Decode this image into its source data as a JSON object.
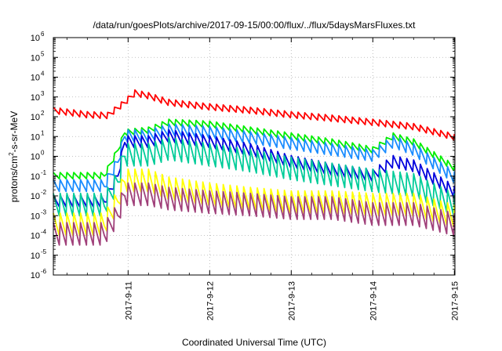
{
  "chart_data": {
    "type": "line",
    "title": "/data/run/goesPlots/archive/2017-09-15/00:00/flux/../flux/5daysMarsFluxes.txt",
    "xlabel": "Coordinated Universal Time (UTC)",
    "ylabel": "protons/cm²-s-sr-MeV",
    "ylabel_parts": {
      "pre": "protons/cm",
      "sup": "2",
      "post": "-s-sr-MeV"
    },
    "yscale": "log",
    "ylim_exponents": [
      -6,
      6
    ],
    "y_ticks": [
      {
        "base": "10",
        "exp": "-6"
      },
      {
        "base": "10",
        "exp": "-5"
      },
      {
        "base": "10",
        "exp": "-4"
      },
      {
        "base": "10",
        "exp": "-3"
      },
      {
        "base": "10",
        "exp": "-2"
      },
      {
        "base": "10",
        "exp": "-1"
      },
      {
        "base": "10",
        "exp": "0"
      },
      {
        "base": "10",
        "exp": "1"
      },
      {
        "base": "10",
        "exp": "2"
      },
      {
        "base": "10",
        "exp": "3"
      },
      {
        "base": "10",
        "exp": "4"
      },
      {
        "base": "10",
        "exp": "5"
      },
      {
        "base": "10",
        "exp": "6"
      }
    ],
    "x_range_days": [
      "2017-09-10 02:00",
      "2017-09-15 00:10"
    ],
    "x_ticks": [
      "2017-9-11",
      "2017-9-12",
      "2017-9-13",
      "2017-9-14",
      "2017-9-15"
    ],
    "grid": true,
    "legend": "none",
    "series": [
      {
        "color": "#ff0000",
        "pattern": "sawtooth_small",
        "points": [
          [
            "2017-09-10 02:00",
            200
          ],
          [
            "2017-09-10 12:00",
            120
          ],
          [
            "2017-09-10 18:00",
            110
          ],
          [
            "2017-09-10 23:00",
            500
          ],
          [
            "2017-09-11 02:00",
            1500
          ],
          [
            "2017-09-11 06:00",
            1100
          ],
          [
            "2017-09-11 12:00",
            500
          ],
          [
            "2017-09-12 00:00",
            300
          ],
          [
            "2017-09-12 12:00",
            200
          ],
          [
            "2017-09-13 00:00",
            120
          ],
          [
            "2017-09-13 12:00",
            80
          ],
          [
            "2017-09-14 00:00",
            50
          ],
          [
            "2017-09-14 12:00",
            30
          ],
          [
            "2017-09-15 00:00",
            9
          ]
        ]
      },
      {
        "color": "#00ee00",
        "pattern": "sawtooth_small",
        "points": [
          [
            "2017-09-10 02:00",
            0.1
          ],
          [
            "2017-09-10 17:00",
            0.1
          ],
          [
            "2017-09-10 21:00",
            2
          ],
          [
            "2017-09-10 23:00",
            15
          ],
          [
            "2017-09-11 06:00",
            20
          ],
          [
            "2017-09-11 12:00",
            50
          ],
          [
            "2017-09-12 00:00",
            40
          ],
          [
            "2017-09-12 12:00",
            20
          ],
          [
            "2017-09-13 00:00",
            10
          ],
          [
            "2017-09-13 12:00",
            5
          ],
          [
            "2017-09-14 00:00",
            2
          ],
          [
            "2017-09-14 06:00",
            10
          ],
          [
            "2017-09-14 12:00",
            5
          ],
          [
            "2017-09-15 00:00",
            0.25
          ]
        ]
      },
      {
        "color": "#1a8cff",
        "pattern": "sawtooth",
        "points": [
          [
            "2017-09-10 02:00",
            0.03
          ],
          [
            "2017-09-10 17:00",
            0.03
          ],
          [
            "2017-09-10 21:00",
            0.5
          ],
          [
            "2017-09-10 23:00",
            10
          ],
          [
            "2017-09-11 06:00",
            10
          ],
          [
            "2017-09-11 12:00",
            20
          ],
          [
            "2017-09-12 00:00",
            15
          ],
          [
            "2017-09-12 12:00",
            8
          ],
          [
            "2017-09-13 00:00",
            4
          ],
          [
            "2017-09-13 12:00",
            2
          ],
          [
            "2017-09-14 00:00",
            1
          ],
          [
            "2017-09-14 06:00",
            5
          ],
          [
            "2017-09-14 12:00",
            2
          ],
          [
            "2017-09-15 00:00",
            0.08
          ]
        ]
      },
      {
        "color": "#0000dd",
        "pattern": "sawtooth",
        "points": [
          [
            "2017-09-10 02:00",
            0.005
          ],
          [
            "2017-09-10 17:00",
            0.005
          ],
          [
            "2017-09-10 21:00",
            0.1
          ],
          [
            "2017-09-10 23:00",
            5
          ],
          [
            "2017-09-11 06:00",
            5
          ],
          [
            "2017-09-11 12:00",
            10
          ],
          [
            "2017-09-12 00:00",
            5
          ],
          [
            "2017-09-12 12:00",
            2
          ],
          [
            "2017-09-13 00:00",
            0.5
          ],
          [
            "2017-09-13 12:00",
            0.2
          ],
          [
            "2017-09-14 00:00",
            0.1
          ],
          [
            "2017-09-14 06:00",
            0.5
          ],
          [
            "2017-09-14 12:00",
            0.3
          ],
          [
            "2017-09-15 00:00",
            0.015
          ]
        ]
      },
      {
        "color": "#00cc99",
        "pattern": "sawtooth_deep",
        "points": [
          [
            "2017-09-10 02:00",
            0.003
          ],
          [
            "2017-09-10 17:00",
            0.003
          ],
          [
            "2017-09-10 21:00",
            0.05
          ],
          [
            "2017-09-10 23:00",
            1
          ],
          [
            "2017-09-11 06:00",
            1
          ],
          [
            "2017-09-11 12:00",
            2
          ],
          [
            "2017-09-12 00:00",
            1
          ],
          [
            "2017-09-12 12:00",
            0.5
          ],
          [
            "2017-09-13 00:00",
            0.2
          ],
          [
            "2017-09-13 12:00",
            0.1
          ],
          [
            "2017-09-14 00:00",
            0.05
          ],
          [
            "2017-09-14 12:00",
            0.03
          ],
          [
            "2017-09-15 00:00",
            0.003
          ]
        ]
      },
      {
        "color": "#ffff00",
        "pattern": "sawtooth_deep",
        "points": [
          [
            "2017-09-10 02:00",
            0.0003
          ],
          [
            "2017-09-10 17:00",
            0.0003
          ],
          [
            "2017-09-10 21:00",
            0.005
          ],
          [
            "2017-09-10 23:00",
            0.05
          ],
          [
            "2017-09-11 06:00",
            0.05
          ],
          [
            "2017-09-11 12:00",
            0.02
          ],
          [
            "2017-09-12 00:00",
            0.01
          ],
          [
            "2017-09-12 12:00",
            0.006
          ],
          [
            "2017-09-13 00:00",
            0.004
          ],
          [
            "2017-09-13 12:00",
            0.004
          ],
          [
            "2017-09-14 00:00",
            0.003
          ],
          [
            "2017-09-14 12:00",
            0.003
          ],
          [
            "2017-09-15 00:00",
            0.0008
          ]
        ]
      },
      {
        "color": "#a0407a",
        "pattern": "sawtooth_deep",
        "points": [
          [
            "2017-09-10 02:00",
            0.0001
          ],
          [
            "2017-09-10 17:00",
            0.0001
          ],
          [
            "2017-09-10 21:00",
            0.001
          ],
          [
            "2017-09-10 23:00",
            0.01
          ],
          [
            "2017-09-11 06:00",
            0.01
          ],
          [
            "2017-09-11 12:00",
            0.006
          ],
          [
            "2017-09-12 00:00",
            0.004
          ],
          [
            "2017-09-12 12:00",
            0.003
          ],
          [
            "2017-09-13 00:00",
            0.002
          ],
          [
            "2017-09-13 12:00",
            0.002
          ],
          [
            "2017-09-14 00:00",
            0.001
          ],
          [
            "2017-09-14 12:00",
            0.001
          ],
          [
            "2017-09-15 00:00",
            0.0003
          ]
        ]
      }
    ]
  }
}
